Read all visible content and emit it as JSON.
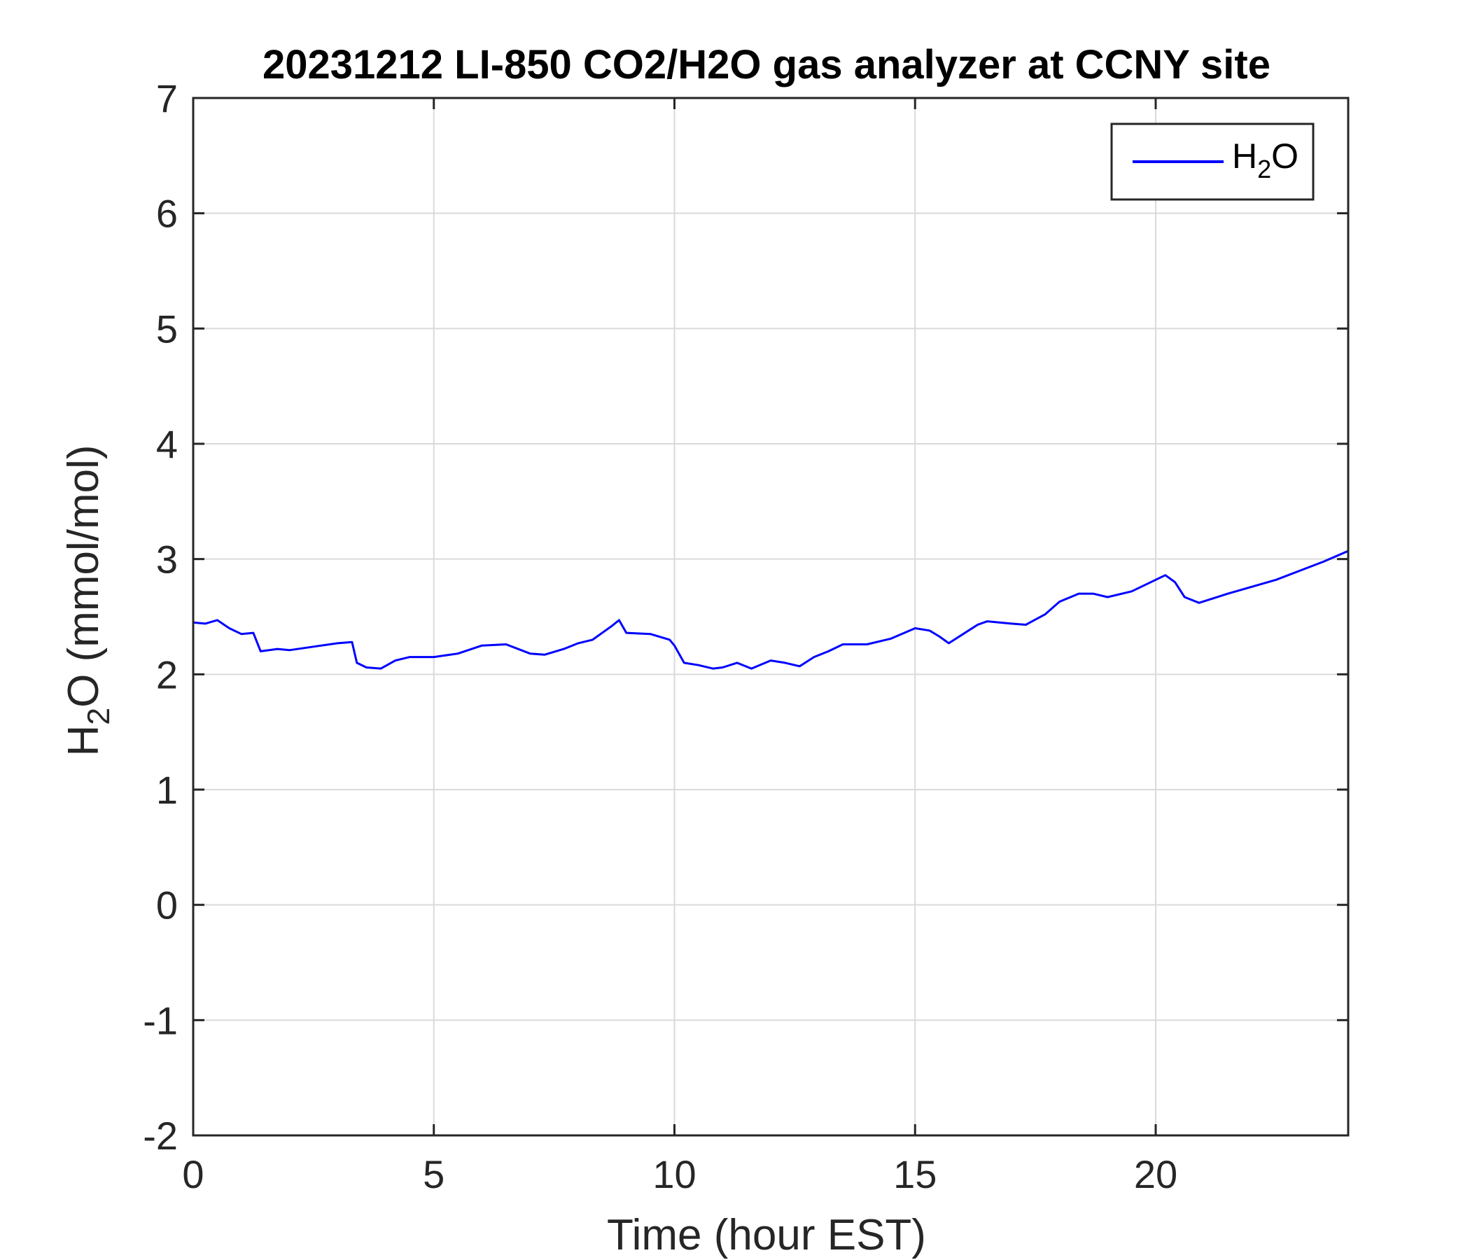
{
  "chart_data": {
    "type": "line",
    "title": "20231212 LI-850 CO2/H2O gas analyzer at CCNY site",
    "xlabel": "Time (hour EST)",
    "ylabel": {
      "main": "H",
      "sub": "2",
      "rest": "O (mmol/mol)"
    },
    "xlim": [
      0,
      24
    ],
    "ylim": [
      -2,
      7
    ],
    "xticks": [
      0,
      5,
      10,
      15,
      20
    ],
    "yticks": [
      -2,
      -1,
      0,
      1,
      2,
      3,
      4,
      5,
      6,
      7
    ],
    "grid": true,
    "legend_position": "top-right",
    "series": [
      {
        "name": {
          "main": "H",
          "sub": "2",
          "rest": "O"
        },
        "color": "#0000ff",
        "x": [
          0,
          0.25,
          0.5,
          0.75,
          1.0,
          1.25,
          1.4,
          1.75,
          2.0,
          2.5,
          3.0,
          3.3,
          3.4,
          3.6,
          3.9,
          4.2,
          4.5,
          5.0,
          5.5,
          6.0,
          6.5,
          7.0,
          7.3,
          7.7,
          8.0,
          8.3,
          8.7,
          8.85,
          9.0,
          9.5,
          9.9,
          10.0,
          10.2,
          10.5,
          10.8,
          11.0,
          11.3,
          11.6,
          12.0,
          12.3,
          12.6,
          12.9,
          13.2,
          13.5,
          14.0,
          14.5,
          15.0,
          15.3,
          15.5,
          15.7,
          16.0,
          16.3,
          16.5,
          17.0,
          17.3,
          17.7,
          18.0,
          18.4,
          18.7,
          19.0,
          19.5,
          20.0,
          20.2,
          20.4,
          20.6,
          20.9,
          21.2,
          21.5,
          22.0,
          22.5,
          23.0,
          23.5,
          24.0
        ],
        "y": [
          2.45,
          2.44,
          2.47,
          2.4,
          2.35,
          2.36,
          2.2,
          2.22,
          2.21,
          2.24,
          2.27,
          2.28,
          2.1,
          2.06,
          2.05,
          2.12,
          2.15,
          2.15,
          2.18,
          2.25,
          2.26,
          2.18,
          2.17,
          2.22,
          2.27,
          2.3,
          2.42,
          2.47,
          2.36,
          2.35,
          2.3,
          2.25,
          2.1,
          2.08,
          2.05,
          2.06,
          2.1,
          2.05,
          2.12,
          2.1,
          2.07,
          2.15,
          2.2,
          2.26,
          2.26,
          2.31,
          2.4,
          2.38,
          2.33,
          2.27,
          2.35,
          2.43,
          2.46,
          2.44,
          2.43,
          2.52,
          2.63,
          2.7,
          2.7,
          2.67,
          2.72,
          2.82,
          2.86,
          2.8,
          2.67,
          2.62,
          2.66,
          2.7,
          2.76,
          2.82,
          2.9,
          2.98,
          3.07
        ]
      }
    ]
  }
}
